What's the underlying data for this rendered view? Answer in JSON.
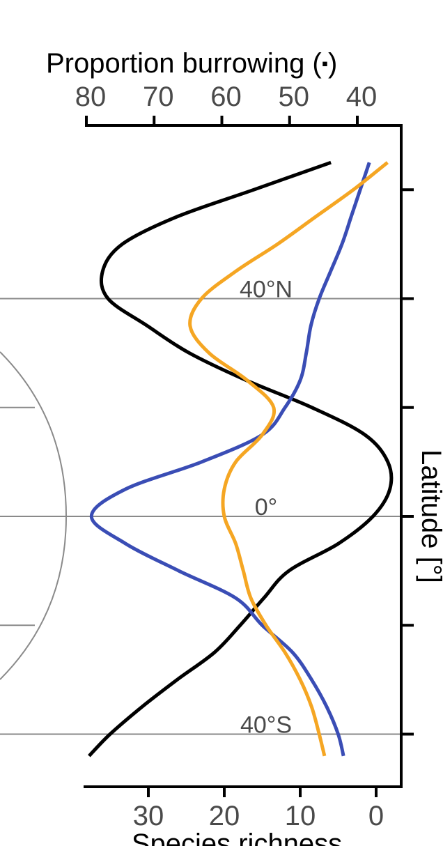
{
  "chart_data": {
    "type": "line",
    "orientation": "vertical-latitude",
    "top_axis": {
      "title_text": "Proportion burrowing (",
      "title_marker": "▪",
      "title_close": ")",
      "ticks": [
        80,
        70,
        60,
        50,
        40
      ],
      "range": [
        80,
        40
      ]
    },
    "bottom_axis": {
      "title": "Species richness",
      "ticks": [
        30,
        20,
        10,
        0
      ],
      "range": [
        30,
        0
      ]
    },
    "right_axis": {
      "title": "Latitude [°]",
      "range": [
        67,
        -47
      ],
      "ticks": [
        60,
        40,
        20,
        0,
        -20,
        -40
      ]
    },
    "latitude_labels": [
      {
        "text": "40°N",
        "lat": 40
      },
      {
        "text": "0°",
        "lat": 0
      },
      {
        "text": "40°S",
        "lat": -40
      }
    ],
    "gridlines_lat": [
      40,
      0,
      -40
    ],
    "globe_lines_lat": [
      20,
      0,
      -20
    ],
    "colors": {
      "proportion": "#000000",
      "richness_blue": "#3a4db5",
      "richness_orange": "#f5a623",
      "grid": "#8a8a8a"
    },
    "series": [
      {
        "axis": "top",
        "color": "#000000",
        "points": [
          [
            43.9,
            65
          ],
          [
            55.3,
            60
          ],
          [
            66.7,
            55
          ],
          [
            74.7,
            50
          ],
          [
            77.6,
            45
          ],
          [
            76.8,
            40
          ],
          [
            71.0,
            35
          ],
          [
            64.8,
            30
          ],
          [
            56.4,
            25
          ],
          [
            46.7,
            20
          ],
          [
            38.9,
            15
          ],
          [
            35.5,
            10
          ],
          [
            35.2,
            5
          ],
          [
            37.7,
            0
          ],
          [
            42.8,
            -5
          ],
          [
            50.1,
            -10
          ],
          [
            53.8,
            -15
          ],
          [
            57.3,
            -20
          ],
          [
            61.1,
            -25
          ],
          [
            66.6,
            -30
          ],
          [
            71.8,
            -35
          ],
          [
            76.5,
            -40
          ],
          [
            79.6,
            -44
          ]
        ]
      },
      {
        "axis": "bottom",
        "color": "#3a4db5",
        "points": [
          [
            0.9,
            65
          ],
          [
            2.1,
            60
          ],
          [
            3.3,
            55
          ],
          [
            4.5,
            50
          ],
          [
            6.0,
            45
          ],
          [
            7.5,
            40
          ],
          [
            8.6,
            35
          ],
          [
            9.2,
            30
          ],
          [
            10.0,
            25
          ],
          [
            12.0,
            20
          ],
          [
            15.0,
            15
          ],
          [
            23.0,
            10
          ],
          [
            33.0,
            5
          ],
          [
            37.5,
            0
          ],
          [
            33.0,
            -5
          ],
          [
            26.0,
            -10
          ],
          [
            18.5,
            -15
          ],
          [
            15.0,
            -20
          ],
          [
            11.0,
            -25
          ],
          [
            8.5,
            -30
          ],
          [
            6.5,
            -35
          ],
          [
            5.0,
            -40
          ],
          [
            4.3,
            -44
          ]
        ]
      },
      {
        "axis": "bottom",
        "color": "#f5a623",
        "points": [
          [
            -1.5,
            65
          ],
          [
            3.0,
            60
          ],
          [
            8.0,
            55
          ],
          [
            13.0,
            50
          ],
          [
            18.5,
            45
          ],
          [
            23.0,
            40
          ],
          [
            24.5,
            35
          ],
          [
            22.0,
            30
          ],
          [
            17.0,
            25
          ],
          [
            13.5,
            20
          ],
          [
            15.0,
            15
          ],
          [
            18.5,
            10
          ],
          [
            20.0,
            5
          ],
          [
            20.0,
            0
          ],
          [
            18.5,
            -5
          ],
          [
            17.5,
            -10
          ],
          [
            16.5,
            -15
          ],
          [
            14.5,
            -20
          ],
          [
            12.0,
            -25
          ],
          [
            10.0,
            -30
          ],
          [
            8.5,
            -35
          ],
          [
            7.5,
            -40
          ],
          [
            6.8,
            -44
          ]
        ]
      }
    ]
  }
}
